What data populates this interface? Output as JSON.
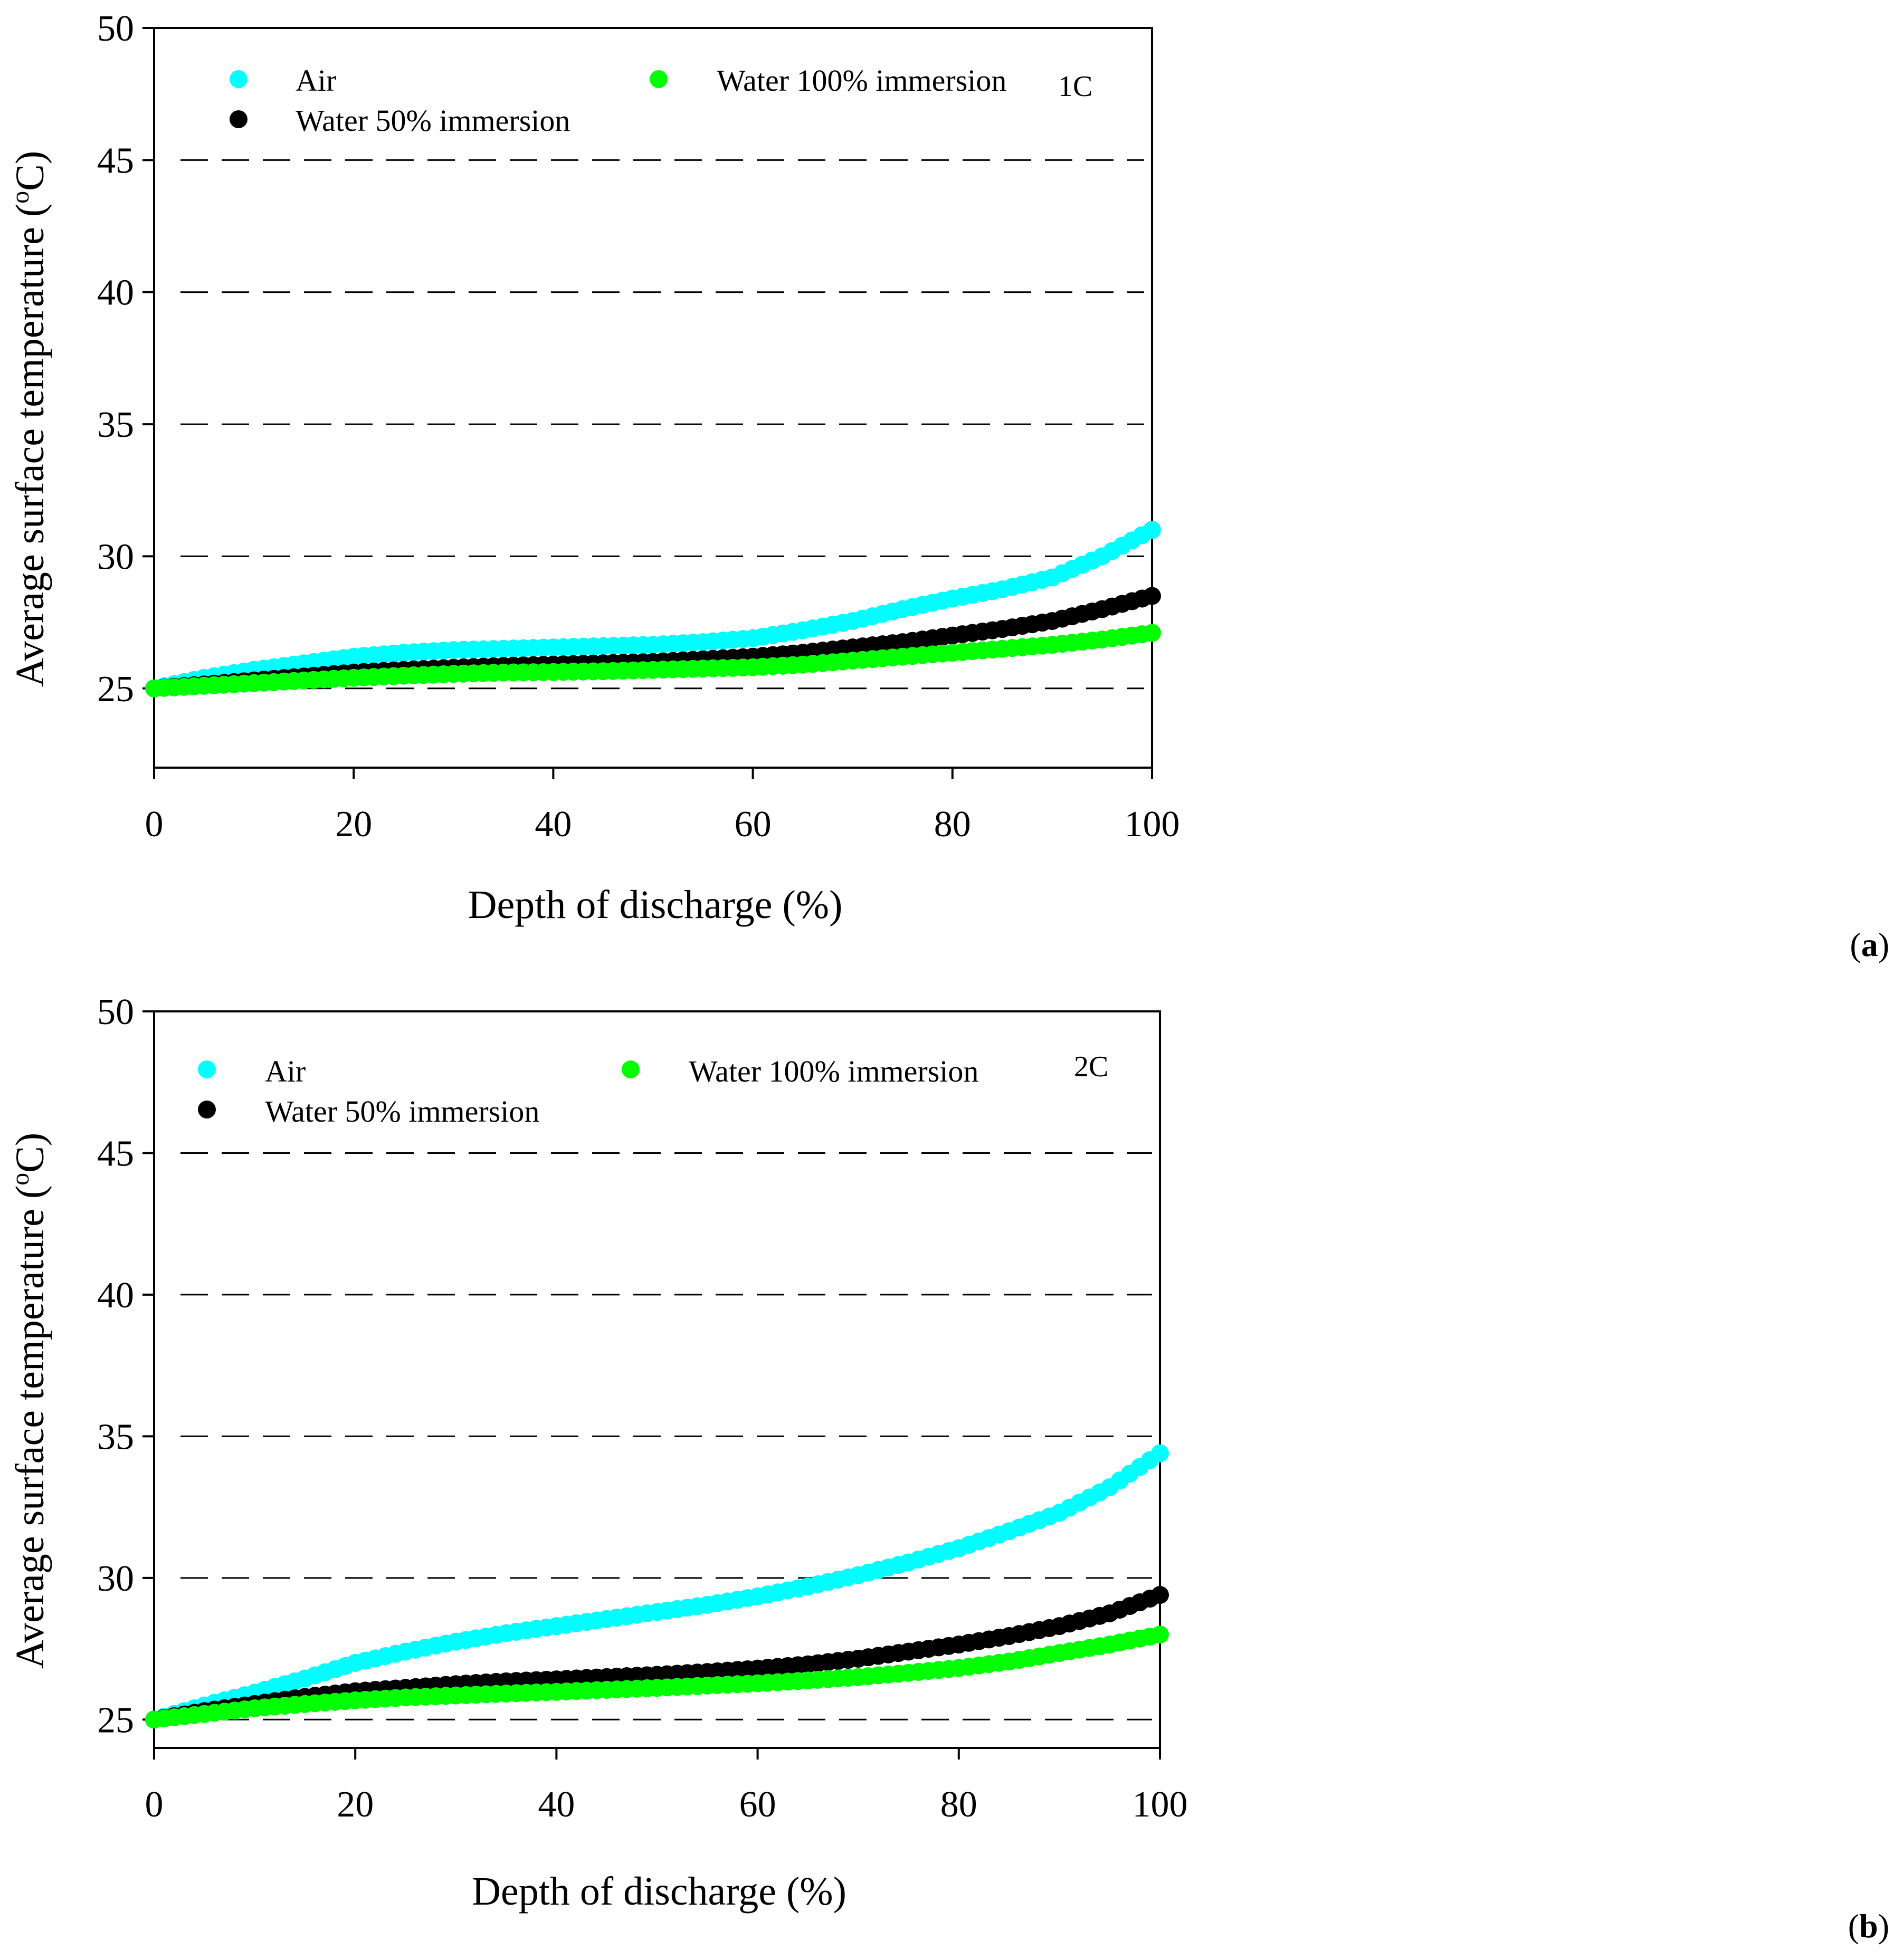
{
  "chart_data": [
    {
      "type": "scatter",
      "panel_label_prefix": "(",
      "panel_label_bold": "a",
      "panel_label_suffix": ")",
      "annotation": "1C",
      "xlabel": "Depth of discharge (%)",
      "ylabel": "Average surface temperature (",
      "ylabel_sup": "o",
      "ylabel_end": "C)",
      "xlim": [
        0,
        100
      ],
      "ylim": [
        22,
        50
      ],
      "xticks": [
        0,
        20,
        40,
        60,
        80,
        100
      ],
      "yticks": [
        25,
        30,
        35,
        40,
        45,
        50
      ],
      "grid_dashed_y": [
        25,
        30,
        35,
        40,
        45
      ],
      "legend_placement": "top",
      "series": [
        {
          "name": "Air",
          "color": "#00FFFF",
          "points": [
            [
              0,
              25.0
            ],
            [
              5,
              25.4
            ],
            [
              10,
              25.7
            ],
            [
              15,
              25.95
            ],
            [
              20,
              26.2
            ],
            [
              25,
              26.35
            ],
            [
              30,
              26.45
            ],
            [
              35,
              26.5
            ],
            [
              40,
              26.55
            ],
            [
              45,
              26.6
            ],
            [
              50,
              26.65
            ],
            [
              55,
              26.75
            ],
            [
              60,
              26.9
            ],
            [
              65,
              27.2
            ],
            [
              70,
              27.55
            ],
            [
              75,
              28.0
            ],
            [
              80,
              28.4
            ],
            [
              85,
              28.75
            ],
            [
              90,
              29.2
            ],
            [
              95,
              30.0
            ],
            [
              100,
              31.0
            ]
          ]
        },
        {
          "name": "Water 50% immersion",
          "color": "#000000",
          "points": [
            [
              0,
              25.0
            ],
            [
              5,
              25.15
            ],
            [
              10,
              25.3
            ],
            [
              15,
              25.45
            ],
            [
              20,
              25.6
            ],
            [
              25,
              25.7
            ],
            [
              30,
              25.78
            ],
            [
              35,
              25.85
            ],
            [
              40,
              25.9
            ],
            [
              45,
              25.95
            ],
            [
              50,
              26.0
            ],
            [
              55,
              26.1
            ],
            [
              60,
              26.2
            ],
            [
              65,
              26.35
            ],
            [
              70,
              26.55
            ],
            [
              75,
              26.75
            ],
            [
              80,
              27.0
            ],
            [
              85,
              27.25
            ],
            [
              90,
              27.55
            ],
            [
              95,
              28.0
            ],
            [
              100,
              28.5
            ]
          ]
        },
        {
          "name": "Water 100% immersion",
          "color": "#00FF00",
          "points": [
            [
              0,
              25.0
            ],
            [
              5,
              25.1
            ],
            [
              10,
              25.2
            ],
            [
              15,
              25.3
            ],
            [
              20,
              25.4
            ],
            [
              25,
              25.48
            ],
            [
              30,
              25.55
            ],
            [
              35,
              25.6
            ],
            [
              40,
              25.62
            ],
            [
              45,
              25.65
            ],
            [
              50,
              25.7
            ],
            [
              55,
              25.75
            ],
            [
              60,
              25.8
            ],
            [
              65,
              25.9
            ],
            [
              70,
              26.05
            ],
            [
              75,
              26.2
            ],
            [
              80,
              26.35
            ],
            [
              85,
              26.5
            ],
            [
              90,
              26.65
            ],
            [
              95,
              26.85
            ],
            [
              100,
              27.1
            ]
          ]
        }
      ]
    },
    {
      "type": "scatter",
      "panel_label_prefix": "(",
      "panel_label_bold": "b",
      "panel_label_suffix": ")",
      "annotation": "2C",
      "xlabel": "Depth of discharge (%)",
      "ylabel": "Average surface temperature (",
      "ylabel_sup": "o",
      "ylabel_end": "C)",
      "xlim": [
        0,
        100
      ],
      "ylim": [
        24,
        50
      ],
      "xticks": [
        0,
        20,
        40,
        60,
        80,
        100
      ],
      "yticks": [
        25,
        30,
        35,
        40,
        45,
        50
      ],
      "grid_dashed_y": [
        25,
        30,
        35,
        40,
        45
      ],
      "legend_placement": "top",
      "series": [
        {
          "name": "Air",
          "color": "#00FFFF",
          "points": [
            [
              0,
              25.0
            ],
            [
              5,
              25.5
            ],
            [
              10,
              25.95
            ],
            [
              15,
              26.45
            ],
            [
              20,
              27.0
            ],
            [
              25,
              27.4
            ],
            [
              30,
              27.75
            ],
            [
              35,
              28.05
            ],
            [
              40,
              28.3
            ],
            [
              45,
              28.55
            ],
            [
              50,
              28.8
            ],
            [
              55,
              29.05
            ],
            [
              60,
              29.35
            ],
            [
              65,
              29.7
            ],
            [
              70,
              30.1
            ],
            [
              75,
              30.55
            ],
            [
              80,
              31.05
            ],
            [
              85,
              31.65
            ],
            [
              90,
              32.3
            ],
            [
              95,
              33.2
            ],
            [
              100,
              34.4
            ]
          ]
        },
        {
          "name": "Water 50% immersion",
          "color": "#000000",
          "points": [
            [
              0,
              25.0
            ],
            [
              5,
              25.3
            ],
            [
              10,
              25.55
            ],
            [
              15,
              25.8
            ],
            [
              20,
              26.0
            ],
            [
              25,
              26.12
            ],
            [
              30,
              26.25
            ],
            [
              35,
              26.35
            ],
            [
              40,
              26.42
            ],
            [
              45,
              26.5
            ],
            [
              50,
              26.58
            ],
            [
              55,
              26.68
            ],
            [
              60,
              26.8
            ],
            [
              65,
              26.95
            ],
            [
              70,
              27.15
            ],
            [
              75,
              27.4
            ],
            [
              80,
              27.65
            ],
            [
              85,
              27.95
            ],
            [
              90,
              28.3
            ],
            [
              95,
              28.75
            ],
            [
              100,
              29.4
            ]
          ]
        },
        {
          "name": "Water 100% immersion",
          "color": "#00FF00",
          "points": [
            [
              0,
              25.0
            ],
            [
              5,
              25.2
            ],
            [
              10,
              25.4
            ],
            [
              15,
              25.55
            ],
            [
              20,
              25.68
            ],
            [
              25,
              25.78
            ],
            [
              30,
              25.85
            ],
            [
              35,
              25.92
            ],
            [
              40,
              25.98
            ],
            [
              45,
              26.05
            ],
            [
              50,
              26.12
            ],
            [
              55,
              26.2
            ],
            [
              60,
              26.28
            ],
            [
              65,
              26.38
            ],
            [
              70,
              26.5
            ],
            [
              75,
              26.65
            ],
            [
              80,
              26.82
            ],
            [
              85,
              27.05
            ],
            [
              90,
              27.35
            ],
            [
              95,
              27.65
            ],
            [
              100,
              28.0
            ]
          ]
        }
      ]
    }
  ]
}
